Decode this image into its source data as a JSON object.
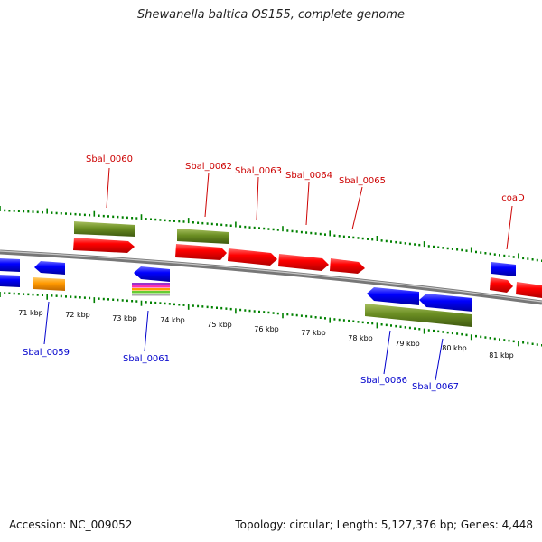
{
  "title": "Shewanella baltica OS155, complete genome",
  "footer": {
    "accession": "Accession: NC_009052",
    "summary": "Topology: circular; Length: 5,127,376 bp; Genes: 4,448"
  },
  "colors": {
    "forward_gene": "#ff0000",
    "reverse_gene": "#0000ff",
    "cds_green": "#6b8e23",
    "orange_feature": "#ff9900",
    "backbone": "#888888",
    "ticks": "#008000",
    "label_top": "#cc0000",
    "label_bottom": "#0000cc"
  },
  "scale_labels": [
    "71 kbp",
    "72 kbp",
    "73 kbp",
    "74 kbp",
    "75 kbp",
    "76 kbp",
    "77 kbp",
    "78 kbp",
    "79 kbp",
    "80 kbp",
    "81 kbp"
  ],
  "top_gene_labels": [
    "Sbal_0060",
    "Sbal_0062",
    "Sbal_0063",
    "Sbal_0064",
    "Sbal_0065",
    "coaD"
  ],
  "bottom_gene_labels": [
    "Sbal_0059",
    "Sbal_0061",
    "Sbal_0066",
    "Sbal_0067"
  ]
}
